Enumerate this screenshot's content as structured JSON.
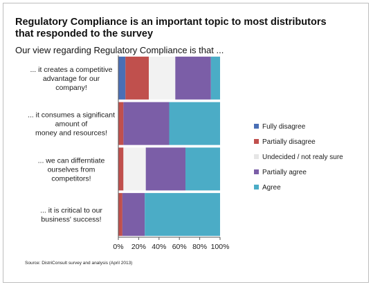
{
  "chart_data": {
    "type": "bar",
    "orientation": "horizontal",
    "stacked": true,
    "title": "Regulatory Compliance is an important topic to most distributors that responded to the survey",
    "subtitle": "Our view regarding Regulatory Compliance is that ...",
    "categories": [
      [
        "... it creates a competitive",
        "advantage for our",
        "company!"
      ],
      [
        "... it consumes a significant",
        "amount of",
        "money and resources!"
      ],
      [
        "... we can differntiate",
        "ourselves from",
        "competitors!"
      ],
      [
        "... it is critical to our",
        "business' success!"
      ]
    ],
    "series": [
      {
        "name": "Fully disagree",
        "color": "#4a6fb5",
        "values": [
          7,
          0,
          0,
          0
        ]
      },
      {
        "name": "Partially disagree",
        "color": "#c0504d",
        "values": [
          23,
          5,
          5,
          4
        ]
      },
      {
        "name": "Undecided / not realy sure",
        "color": "#f2f2f2",
        "values": [
          26,
          0,
          22,
          0
        ]
      },
      {
        "name": "Partially agree",
        "color": "#7b5ea7",
        "values": [
          35,
          45,
          39,
          22
        ]
      },
      {
        "name": "Agree",
        "color": "#4bacc6",
        "values": [
          9,
          50,
          34,
          74
        ]
      }
    ],
    "xlim": [
      0,
      100
    ],
    "xticks": [
      "0%",
      "20%",
      "40%",
      "60%",
      "80%",
      "100%"
    ],
    "legend_position": "right",
    "grid": false
  },
  "source": "Source: DistriConsult survey and analysis  (April 2013)"
}
